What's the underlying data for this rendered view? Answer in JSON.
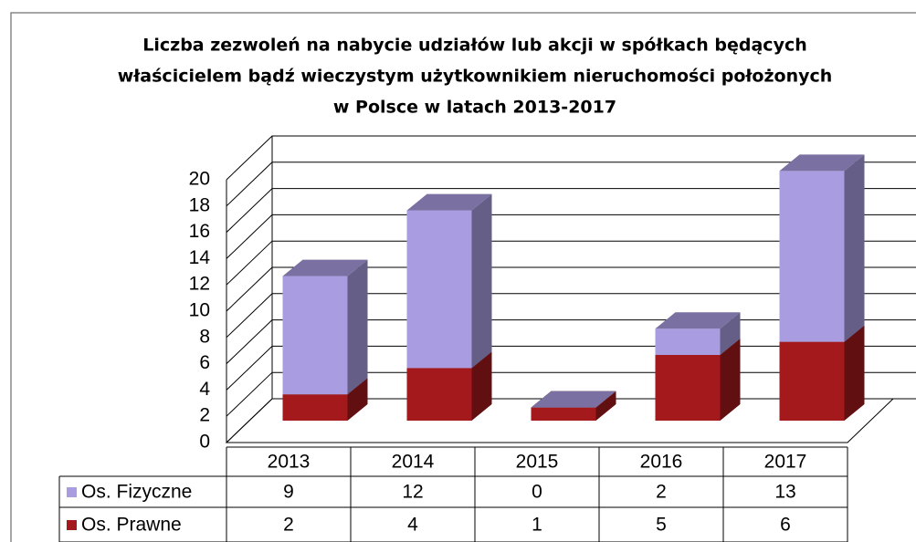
{
  "chart_data": {
    "type": "bar3d_stacked",
    "title": [
      "Liczba zezwoleń na nabycie udziałów lub akcji w spółkach będących",
      "właścicielem bądź wieczystym użytkownikiem nieruchomości położonych",
      "w Polsce w latach 2013-2017"
    ],
    "categories": [
      "2013",
      "2014",
      "2015",
      "2016",
      "2017"
    ],
    "series": [
      {
        "name": "Os. Prawne",
        "color": "#a3191c",
        "values": [
          2,
          4,
          1,
          5,
          6
        ]
      },
      {
        "name": "Os. Fizyczne",
        "color": "#a99ce0",
        "values": [
          9,
          12,
          0,
          2,
          13
        ]
      }
    ],
    "ylim": [
      0,
      20
    ],
    "yticks": [
      0,
      2,
      4,
      6,
      8,
      10,
      12,
      14,
      16,
      18,
      20
    ],
    "grid": true,
    "data_table": true
  }
}
